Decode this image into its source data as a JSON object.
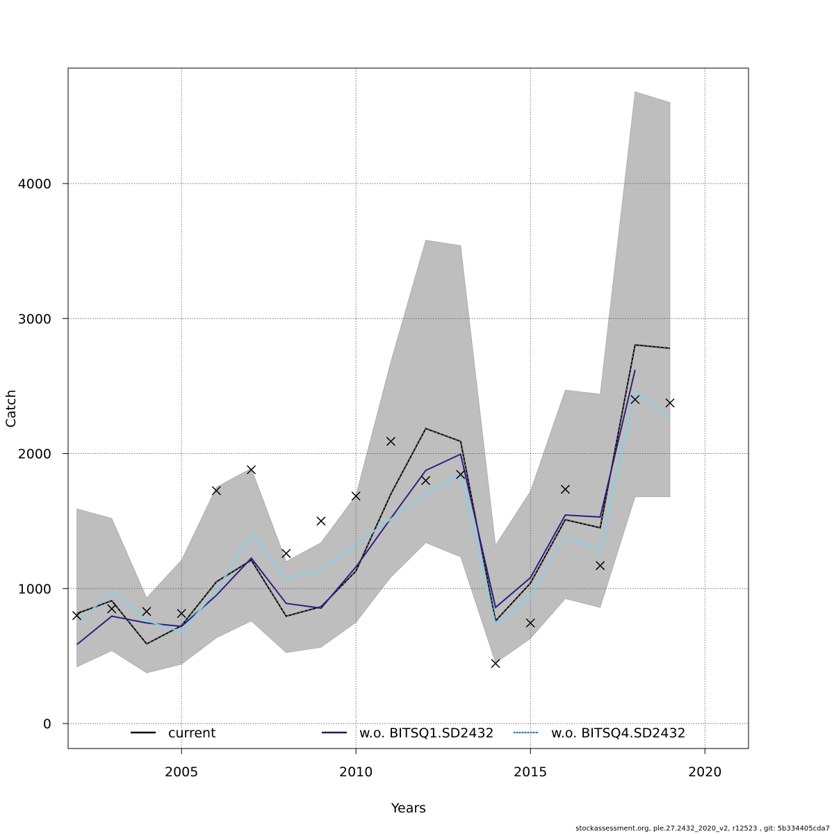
{
  "chart_data": {
    "type": "line",
    "xlabel": "Years",
    "ylabel": "Catch",
    "xlim": [
      2001.75,
      2021.25
    ],
    "ylim": [
      -185,
      4855
    ],
    "xticks": [
      2005,
      2010,
      2015,
      2020
    ],
    "yticks": [
      0,
      1000,
      2000,
      3000,
      4000
    ],
    "grid": true,
    "legend_position": "bottom",
    "years": [
      2002,
      2003,
      2004,
      2005,
      2006,
      2007,
      2008,
      2009,
      2010,
      2011,
      2012,
      2013,
      2014,
      2015,
      2016,
      2017,
      2018,
      2019
    ],
    "band": {
      "name": "confidence interval (current)",
      "color": "#bebebe",
      "upper": [
        1590,
        1520,
        930,
        1210,
        1750,
        1890,
        1200,
        1340,
        1690,
        2680,
        3580,
        3540,
        1320,
        1720,
        2470,
        2440,
        4680,
        4600
      ],
      "lower": [
        420,
        540,
        375,
        440,
        635,
        760,
        525,
        565,
        750,
        1085,
        1340,
        1235,
        450,
        630,
        925,
        860,
        1680,
        1680
      ]
    },
    "series": [
      {
        "name": "current",
        "color": "#000000",
        "values": [
          815,
          910,
          590,
          725,
          1050,
          1210,
          795,
          865,
          1130,
          1700,
          2185,
          2090,
          760,
          1040,
          1510,
          1450,
          2805,
          2780
        ]
      },
      {
        "name": "w.o. BITSQ1.SD2432",
        "color": "#2e1e84",
        "values": [
          585,
          795,
          745,
          720,
          950,
          1225,
          890,
          855,
          1160,
          1520,
          1875,
          1995,
          860,
          1080,
          1545,
          1530,
          2620,
          null
        ]
      },
      {
        "name": "w.o. BITSQ4.SD2432",
        "color": "#87ceeb",
        "values": [
          735,
          985,
          760,
          680,
          985,
          1400,
          1075,
          1135,
          1330,
          1515,
          1700,
          1850,
          735,
          945,
          1385,
          1285,
          2460,
          2265
        ]
      }
    ],
    "observations": {
      "name": "observed catch",
      "marker": "x",
      "values": [
        800,
        850,
        830,
        815,
        1725,
        1880,
        1260,
        1500,
        1685,
        2090,
        1800,
        1845,
        445,
        745,
        1735,
        1170,
        2400,
        2375
      ]
    },
    "legend": [
      "current",
      "w.o. BITSQ1.SD2432",
      "w.o. BITSQ4.SD2432"
    ]
  },
  "footer_text": "stockassessment.org, ple.27.2432_2020_v2, r12523 , git: 5b334405cda7"
}
